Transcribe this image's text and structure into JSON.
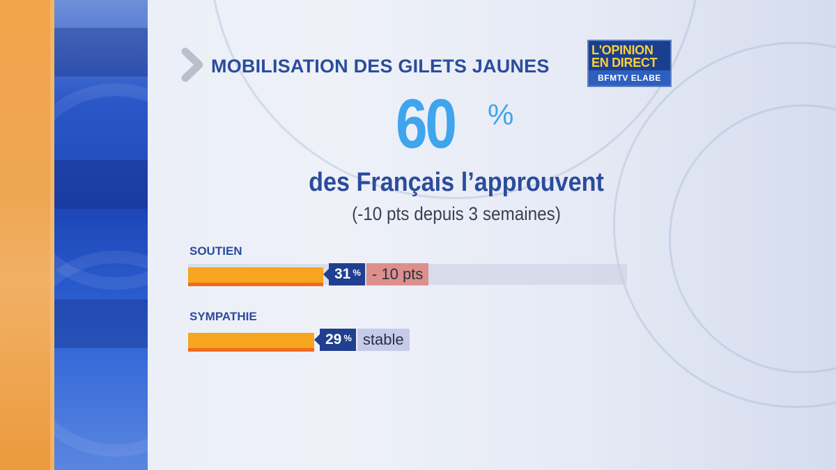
{
  "header": {
    "title": "MOBILISATION DES GILETS JAUNES",
    "logo": {
      "line1": "L'OPINION",
      "line2": "EN DIRECT",
      "line3": "BFMTV ELABE"
    }
  },
  "headline": {
    "value": "60",
    "unit": "%",
    "text": "des Français l’approuvent",
    "note": "(-10 pts depuis 3 semaines)"
  },
  "colors": {
    "bar": "#f7a41f",
    "bar_edge": "#f26a1b",
    "tag": "#213f90",
    "accent": "#3fa5ec",
    "title": "#2b4c9c",
    "negative": "#dc8f8c",
    "stable": "#c6cbea"
  },
  "chart_data": {
    "type": "bar",
    "orientation": "horizontal",
    "title": "",
    "categories": [
      "SOUTIEN",
      "SYMPATHIE"
    ],
    "values": [
      31,
      29
    ],
    "value_labels": [
      "31",
      "29"
    ],
    "unit": "%",
    "changes": [
      "- 10 pts",
      "stable"
    ],
    "xlim": [
      0,
      100
    ],
    "grid": false,
    "legend": "none"
  }
}
